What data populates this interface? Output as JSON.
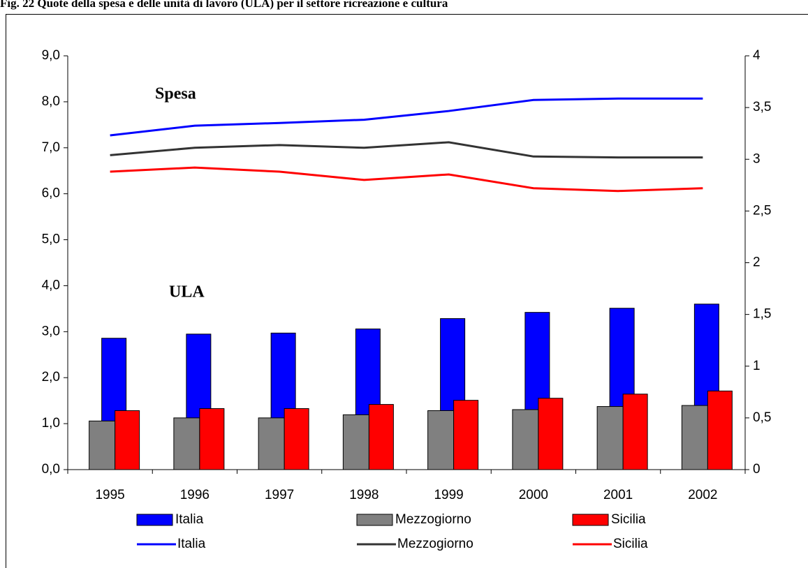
{
  "chart_data": {
    "type": "combo",
    "title": "Fig. 22 Quote della spesa  e delle unità di lavoro  (ULA) per il settore ricreazione e cultura",
    "annotations": [
      "Spesa",
      "ULA"
    ],
    "categories": [
      "1995",
      "1996",
      "1997",
      "1998",
      "1999",
      "2000",
      "2001",
      "2002"
    ],
    "series": [
      {
        "name": "Italia",
        "type": "bar",
        "axis": "y2",
        "color": "#0000ff",
        "values": [
          1.27,
          1.31,
          1.32,
          1.36,
          1.46,
          1.52,
          1.56,
          1.6
        ]
      },
      {
        "name": "Mezzogiorno",
        "type": "bar",
        "axis": "y2",
        "color": "#808080",
        "values": [
          0.47,
          0.5,
          0.5,
          0.53,
          0.57,
          0.58,
          0.61,
          0.62
        ]
      },
      {
        "name": "Sicilia",
        "type": "bar",
        "axis": "y2",
        "color": "#ff0000",
        "values": [
          0.57,
          0.59,
          0.59,
          0.63,
          0.67,
          0.69,
          0.73,
          0.76
        ]
      },
      {
        "name": "Italia",
        "type": "line",
        "axis": "y",
        "color": "#0000ff",
        "values": [
          7.27,
          7.48,
          7.54,
          7.61,
          7.8,
          8.04,
          8.07,
          8.07
        ]
      },
      {
        "name": "Mezzogiorno",
        "type": "line",
        "axis": "y",
        "color": "#333333",
        "values": [
          6.84,
          7.0,
          7.06,
          7.0,
          7.12,
          6.81,
          6.79,
          6.79
        ]
      },
      {
        "name": "Sicilia",
        "type": "line",
        "axis": "y",
        "color": "#ff0000",
        "values": [
          6.48,
          6.57,
          6.48,
          6.3,
          6.42,
          6.12,
          6.06,
          6.12
        ]
      }
    ],
    "ylim": [
      0,
      9
    ],
    "yticks": [
      {
        "value": 0,
        "label": "0,0"
      },
      {
        "value": 1,
        "label": "1,0"
      },
      {
        "value": 2,
        "label": "2,0"
      },
      {
        "value": 3,
        "label": "3,0"
      },
      {
        "value": 4,
        "label": "4,0"
      },
      {
        "value": 5,
        "label": "5,0"
      },
      {
        "value": 6,
        "label": "6,0"
      },
      {
        "value": 7,
        "label": "7,0"
      },
      {
        "value": 8,
        "label": "8,0"
      },
      {
        "value": 9,
        "label": "9,0"
      }
    ],
    "y2lim": [
      0,
      4
    ],
    "y2ticks": [
      0,
      {
        "value": 0.5,
        "label": "0,5"
      },
      1,
      {
        "value": 1.5,
        "label": "1,5"
      },
      2,
      {
        "value": 2.5,
        "label": "2,5"
      },
      3,
      {
        "value": 3.5,
        "label": "3,5"
      },
      4
    ]
  }
}
